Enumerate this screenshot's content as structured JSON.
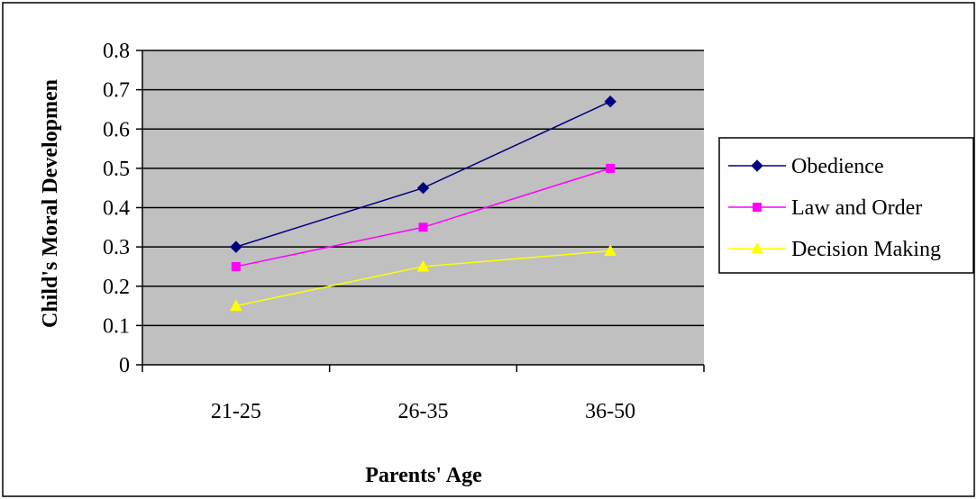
{
  "chart_data": {
    "type": "line",
    "title": "",
    "xlabel": "Parents' Age",
    "ylabel": "Child's Moral Developmen",
    "categories": [
      "21-25",
      "26-35",
      "36-50"
    ],
    "ylim": [
      0,
      0.8
    ],
    "yticks": [
      "0",
      "0.1",
      "0.2",
      "0.3",
      "0.4",
      "0.5",
      "0.6",
      "0.7",
      "0.8"
    ],
    "grid": true,
    "legend_position": "right",
    "plot_background": "#c0c0c0",
    "series": [
      {
        "name": "Obedience",
        "values": [
          0.3,
          0.45,
          0.67
        ],
        "color": "#000080",
        "marker": "diamond"
      },
      {
        "name": "Law and Order",
        "values": [
          0.25,
          0.35,
          0.5
        ],
        "color": "#ff00ff",
        "marker": "square"
      },
      {
        "name": "Decision Making",
        "values": [
          0.15,
          0.25,
          0.29
        ],
        "color": "#ffff00",
        "marker": "triangle"
      }
    ]
  }
}
